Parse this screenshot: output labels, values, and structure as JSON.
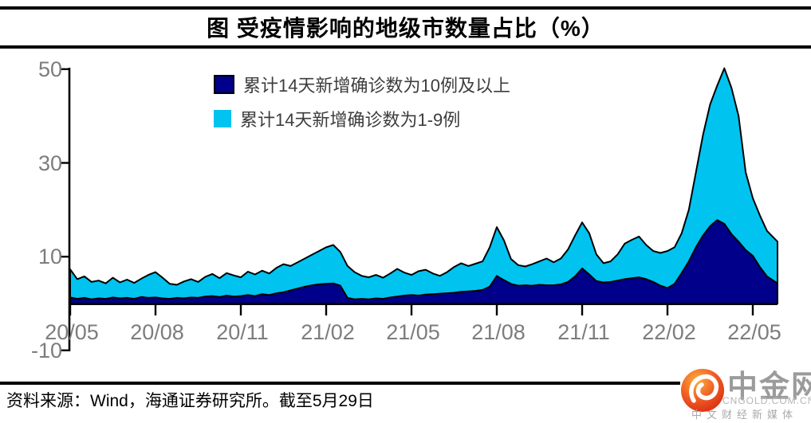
{
  "title": "图 受疫情影响的地级市数量占比（%）",
  "legend": [
    {
      "label": "累计14天新增确诊数为10例及以上",
      "color": "#00008B"
    },
    {
      "label": "累计14天新增确诊数为1-9例",
      "color": "#00C3F0"
    }
  ],
  "source_note": "资料来源：Wind，海通证券研究所。截至5月29日",
  "logo": {
    "name": "中金网",
    "domain": "CNGOLD.COM.CN",
    "tagline": "中文财经新媒体"
  },
  "chart_data": {
    "type": "area",
    "stacked": true,
    "title": "图 受疫情影响的地级市数量占比（%）",
    "unit": "%",
    "grid": false,
    "legend_position": "top-center",
    "ylim": [
      -10,
      50
    ],
    "y_ticks": [
      50,
      30,
      10,
      -10
    ],
    "y_tick_labels": [
      "50",
      "30",
      "10",
      "-10"
    ],
    "x_tick_labels": [
      "20/05",
      "20/08",
      "20/11",
      "21/02",
      "21/05",
      "21/08",
      "21/11",
      "22/02",
      "22/05"
    ],
    "x": {
      "unit": "months since 2020/05",
      "start": 0,
      "step": 0.25,
      "last": 24.87
    },
    "series": [
      {
        "name": "累计14天新增确诊数为10例及以上",
        "color": "#00008B",
        "values": [
          1.3,
          1.0,
          1.2,
          0.9,
          1.1,
          1.0,
          1.3,
          1.1,
          1.2,
          1.0,
          1.4,
          1.2,
          1.3,
          1.1,
          1.0,
          1.2,
          1.1,
          1.3,
          1.2,
          1.5,
          1.6,
          1.4,
          1.7,
          1.5,
          1.6,
          1.8,
          1.6,
          2.0,
          1.8,
          2.2,
          2.4,
          2.8,
          3.2,
          3.6,
          3.9,
          4.1,
          4.2,
          4.3,
          3.8,
          1.2,
          0.9,
          1.0,
          0.9,
          1.1,
          1.0,
          1.3,
          1.5,
          1.7,
          1.8,
          1.7,
          1.9,
          2.0,
          2.1,
          2.2,
          2.3,
          2.5,
          2.6,
          2.7,
          2.9,
          3.6,
          5.9,
          5.0,
          4.2,
          3.8,
          3.9,
          3.8,
          4.0,
          3.9,
          3.9,
          4.1,
          4.6,
          5.8,
          7.5,
          6.2,
          4.8,
          4.5,
          4.6,
          4.9,
          5.2,
          5.4,
          5.6,
          5.2,
          4.6,
          3.8,
          3.3,
          4.2,
          6.5,
          9.0,
          12.0,
          14.5,
          16.5,
          17.8,
          17.0,
          14.8,
          13.2,
          11.4,
          10.2,
          7.8,
          5.8,
          4.3
        ]
      },
      {
        "name": "累计14天新增确诊数为1-9例",
        "color": "#00C3F0",
        "values": [
          6.0,
          4.2,
          4.6,
          3.7,
          3.8,
          3.3,
          4.2,
          3.4,
          3.9,
          3.4,
          3.9,
          4.9,
          5.4,
          4.4,
          3.2,
          2.8,
          3.6,
          3.9,
          3.4,
          4.2,
          4.7,
          4.0,
          4.8,
          4.5,
          4.0,
          5.0,
          4.6,
          5.0,
          4.6,
          5.4,
          6.0,
          5.2,
          5.6,
          6.0,
          6.5,
          7.1,
          7.8,
          8.2,
          7.2,
          6.8,
          5.8,
          4.9,
          4.7,
          5.0,
          4.5,
          5.1,
          5.9,
          4.9,
          4.3,
          5.2,
          5.3,
          4.4,
          3.8,
          4.5,
          5.5,
          6.1,
          5.4,
          5.8,
          6.1,
          8.4,
          10.4,
          8.5,
          5.3,
          4.4,
          4.0,
          4.6,
          5.0,
          5.7,
          4.9,
          5.5,
          6.9,
          8.7,
          9.8,
          8.8,
          5.7,
          4.1,
          4.4,
          5.6,
          7.6,
          8.2,
          8.7,
          7.3,
          6.6,
          7.0,
          7.9,
          7.8,
          8.5,
          11.0,
          16.0,
          21.5,
          26.0,
          28.7,
          33.2,
          31.2,
          26.8,
          16.6,
          12.3,
          11.0,
          9.7,
          8.9
        ]
      }
    ]
  }
}
